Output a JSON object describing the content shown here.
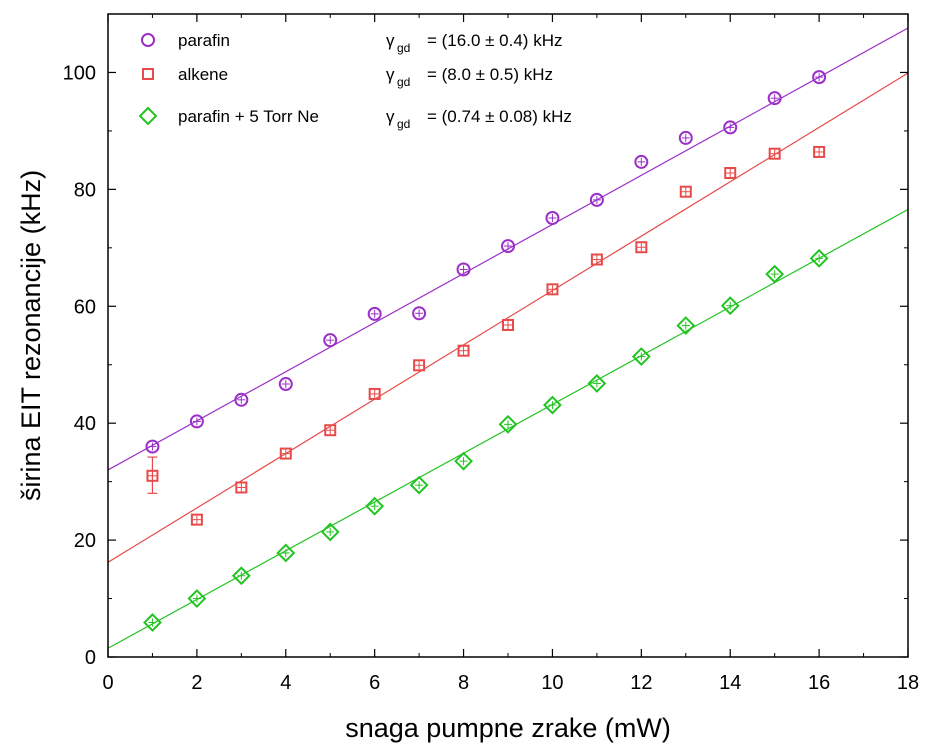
{
  "chart_data": {
    "type": "scatter",
    "xlabel": "snaga pumpne zrake (mW)",
    "ylabel": "širina EIT rezonancije (kHz)",
    "xlim": [
      0,
      18
    ],
    "ylim": [
      0,
      110
    ],
    "xticks": [
      0,
      2,
      4,
      6,
      8,
      10,
      12,
      14,
      16,
      18
    ],
    "yticks": [
      0,
      20,
      40,
      60,
      80,
      100
    ],
    "grid": false,
    "legend_position": "top-left",
    "series": [
      {
        "name": "parafin",
        "marker": "circle",
        "color": "#9b30c8",
        "x": [
          1,
          2,
          3,
          4,
          5,
          6,
          7,
          8,
          9,
          10,
          11,
          12,
          13,
          14,
          15,
          16
        ],
        "y": [
          36.0,
          40.3,
          44.0,
          46.7,
          54.2,
          58.7,
          58.8,
          66.3,
          70.3,
          75.1,
          78.2,
          84.7,
          88.8,
          90.6,
          95.6,
          99.2
        ],
        "fit": {
          "intercept": 32.0,
          "slope": 4.2
        },
        "annotation_symbol": "γ",
        "annotation_sub": "gd",
        "annotation_value": "=  (16.0 ± 0.4) kHz"
      },
      {
        "name": "alkene",
        "marker": "square",
        "color": "#e84a4a",
        "x": [
          1,
          2,
          3,
          4,
          5,
          6,
          7,
          8,
          9,
          10,
          11,
          12,
          13,
          14,
          15,
          16
        ],
        "y": [
          31.0,
          23.5,
          29.0,
          34.8,
          38.8,
          45.0,
          49.9,
          52.4,
          56.8,
          62.9,
          68.0,
          70.1,
          79.6,
          82.8,
          86.1,
          86.4
        ],
        "error_bars": [
          {
            "x": 1,
            "low": 28.0,
            "high": 34.2
          }
        ],
        "fit": {
          "intercept": 16.2,
          "slope": 4.65
        },
        "annotation_symbol": "γ",
        "annotation_sub": "gd",
        "annotation_value": "=  (8.0 ± 0.5) kHz"
      },
      {
        "name": "parafin + 5 Torr Ne",
        "marker": "diamond",
        "color": "#22c422",
        "x": [
          1,
          2,
          3,
          4,
          5,
          6,
          7,
          8,
          9,
          10,
          11,
          12,
          13,
          14,
          15,
          16
        ],
        "y": [
          5.9,
          10.0,
          13.9,
          17.8,
          21.4,
          25.8,
          29.4,
          33.5,
          39.8,
          43.1,
          46.8,
          51.4,
          56.7,
          60.1,
          65.5,
          68.2
        ],
        "fit": {
          "intercept": 1.5,
          "slope": 4.17
        },
        "annotation_symbol": "γ",
        "annotation_sub": "gd",
        "annotation_value": "=  (0.74 ± 0.08) kHz"
      }
    ]
  }
}
